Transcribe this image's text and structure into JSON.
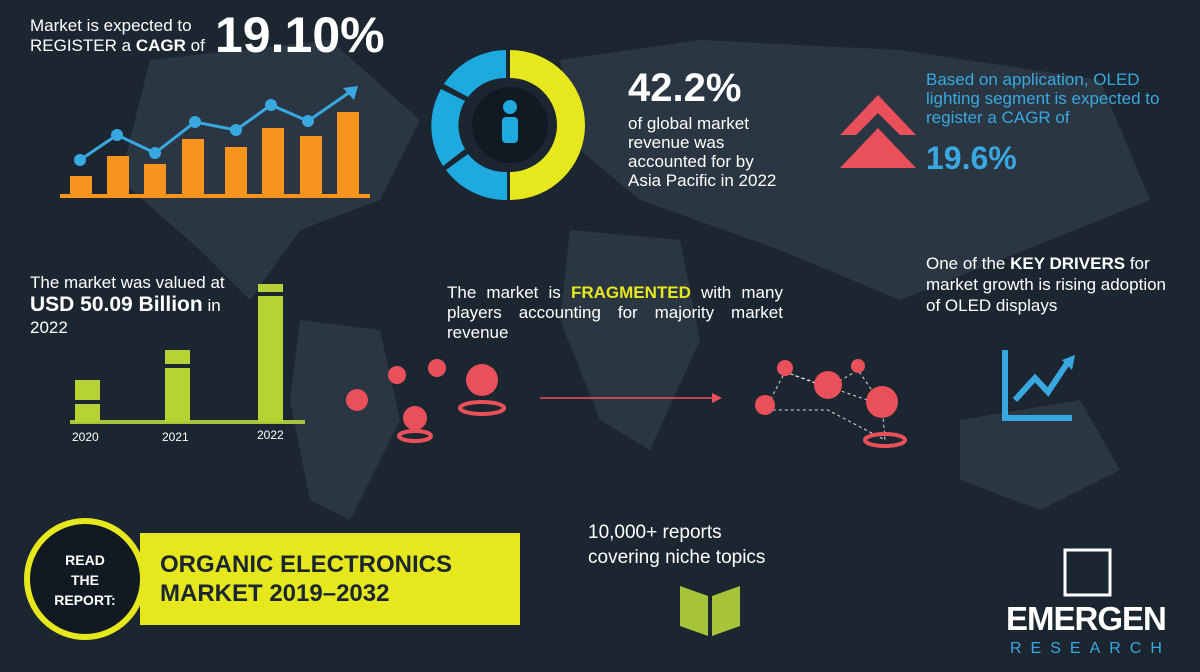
{
  "cagr": {
    "line1": "Market is expected to",
    "line2": "REGISTER a",
    "emphasis": "CAGR",
    "suffix": "of",
    "value": "19.10%"
  },
  "valuation": {
    "intro": "The market was valued at",
    "amount": "USD 50.09 Billion",
    "suffix": "in",
    "year": "2022",
    "years": [
      "2020",
      "2021",
      "2022"
    ]
  },
  "region": {
    "value": "42.2%",
    "text": "of global market revenue was accounted for by Asia Pacific in 2022"
  },
  "fragmented": {
    "prefix": "The market is",
    "emphasis": "FRAGMENTED",
    "suffix": "with many players accounting for majority market revenue"
  },
  "application": {
    "text": "Based on application, OLED lighting segment is expected to register a CAGR of",
    "value": "19.6%"
  },
  "drivers": {
    "prefix": "One of the",
    "emphasis": "KEY DRIVERS",
    "suffix": "for market growth is rising adoption of OLED displays"
  },
  "reports": {
    "text": "10,000+ reports covering niche topics"
  },
  "cta": {
    "read": "READ",
    "the": "THE",
    "report": "REPORT:",
    "title_line1": "ORGANIC ELECTRONICS",
    "title_line2": "MARKET 2019–2032"
  },
  "brand": {
    "name": "EMERGEN",
    "sub": "RESEARCH"
  }
}
